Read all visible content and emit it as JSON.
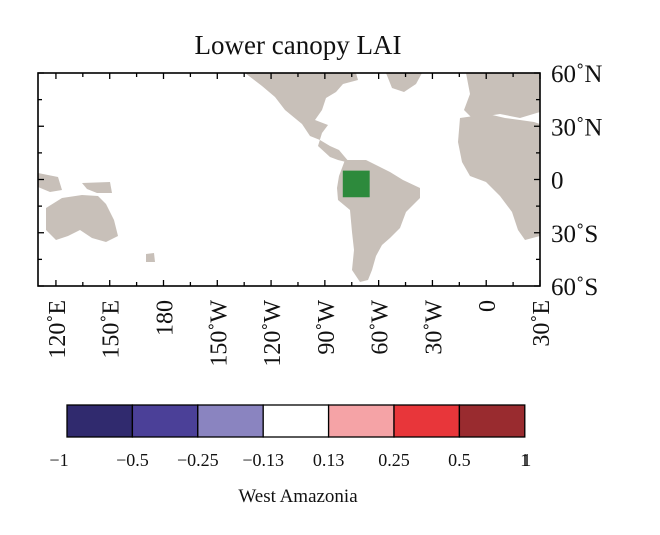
{
  "figure": {
    "title": "Lower canopy LAI",
    "subtitle": "West Amazonia",
    "region_color": "#2d8a3c",
    "land_color": "#c8c0b9",
    "ocean_color": "#ffffff"
  },
  "map": {
    "projection": "equirectangular",
    "lon_range": [
      110,
      390
    ],
    "lat_range": [
      -60,
      60
    ],
    "highlighted_region": {
      "name": "West Amazonia",
      "lon": [
        -80,
        -65
      ],
      "lat": [
        -10,
        5
      ]
    },
    "lat_labels": [
      {
        "lat": 60,
        "label": "60˚N"
      },
      {
        "lat": 30,
        "label": "30˚N"
      },
      {
        "lat": 0,
        "label": "0"
      },
      {
        "lat": -30,
        "label": "30˚S"
      },
      {
        "lat": -60,
        "label": "60˚S"
      }
    ],
    "lon_labels": [
      {
        "lon": 120,
        "label": "120˚E"
      },
      {
        "lon": 150,
        "label": "150˚E"
      },
      {
        "lon": 180,
        "label": "180"
      },
      {
        "lon": 210,
        "label": "150˚W"
      },
      {
        "lon": 240,
        "label": "120˚W"
      },
      {
        "lon": 270,
        "label": "90˚W"
      },
      {
        "lon": 300,
        "label": "60˚W"
      },
      {
        "lon": 330,
        "label": "30˚W"
      },
      {
        "lon": 360,
        "label": "0"
      },
      {
        "lon": 390,
        "label": "30˚E"
      }
    ]
  },
  "colorbar": {
    "labels": [
      "−1",
      "−0.5",
      "−0.25",
      "−0.13",
      "0.13",
      "0.25",
      "0.5",
      "1"
    ],
    "colors": [
      "#302a6e",
      "#4b4098",
      "#8a84c0",
      "#ffffff",
      "#f5a3a6",
      "#e8363a",
      "#992b2f"
    ]
  }
}
